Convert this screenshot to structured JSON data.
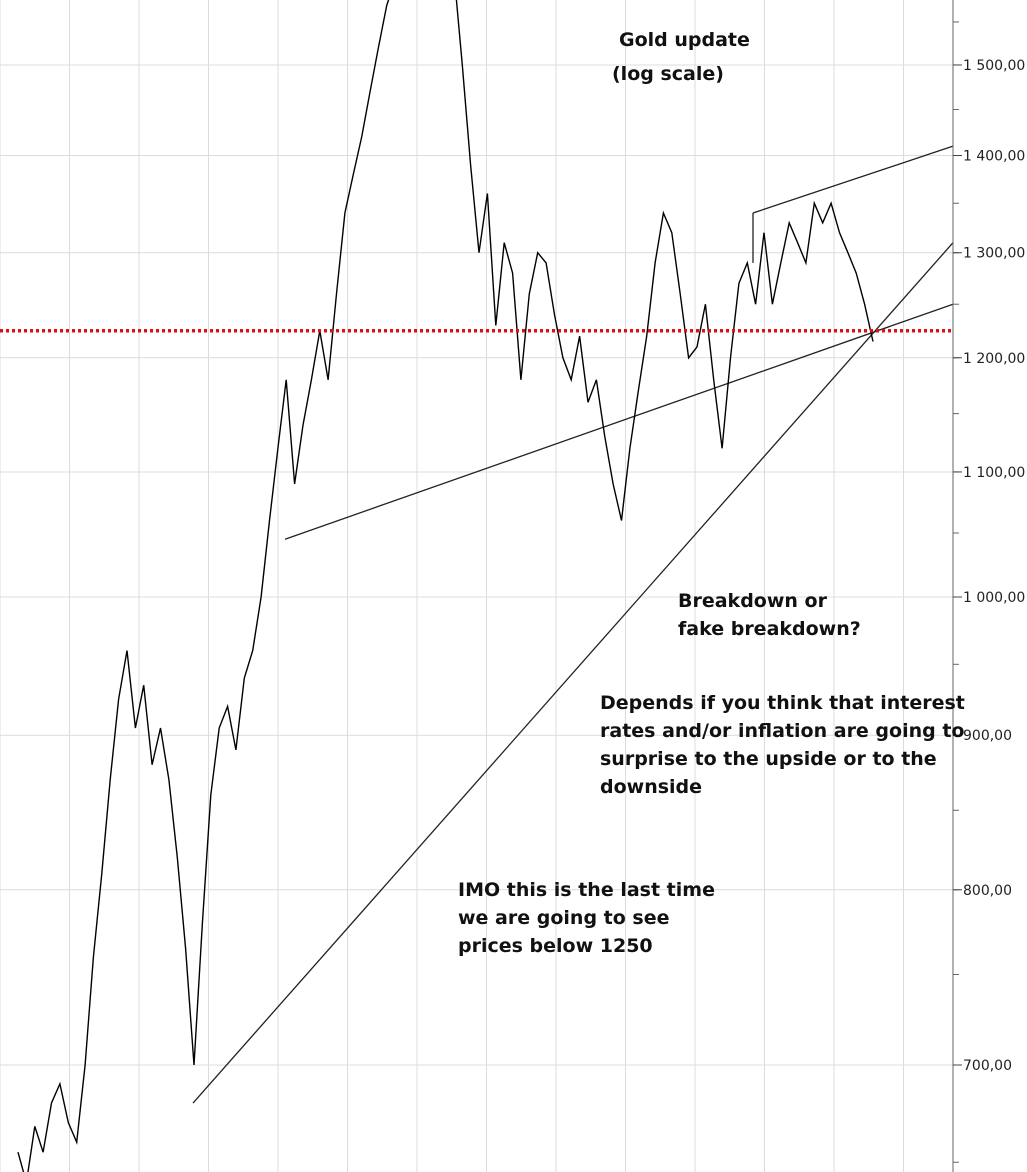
{
  "chart_data": {
    "type": "line",
    "title": "Gold update",
    "subtitle": "(log scale)",
    "xlabel": "",
    "ylabel": "",
    "y_scale": "log",
    "ylim": [
      650,
      1620
    ],
    "grid": true,
    "y_ticks": [
      {
        "value": 700,
        "label": "700,00"
      },
      {
        "value": 800,
        "label": "800,00"
      },
      {
        "value": 900,
        "label": "900,00"
      },
      {
        "value": 1000,
        "label": "1 000,00"
      },
      {
        "value": 1100,
        "label": "1 100,00"
      },
      {
        "value": 1200,
        "label": "1 200,00"
      },
      {
        "value": 1300,
        "label": "1 300,00"
      },
      {
        "value": 1400,
        "label": "1 400,00"
      },
      {
        "value": 1500,
        "label": "1 500,00"
      }
    ],
    "series": [
      {
        "values": [
          655,
          640,
          668,
          655,
          680,
          690,
          670,
          660,
          700,
          760,
          810,
          870,
          925,
          960,
          905,
          935,
          880,
          905,
          870,
          820,
          765,
          700,
          780,
          860,
          905,
          920,
          890,
          940,
          960,
          1000,
          1060,
          1120,
          1180,
          1090,
          1140,
          1180,
          1225,
          1180,
          1260,
          1340,
          1380,
          1420,
          1470,
          1520,
          1570,
          1600,
          1610,
          1590,
          1620,
          1610,
          1590,
          1630,
          1610,
          1500,
          1390,
          1300,
          1360,
          1230,
          1310,
          1280,
          1180,
          1260,
          1300,
          1290,
          1240,
          1200,
          1180,
          1220,
          1160,
          1180,
          1130,
          1090,
          1060,
          1120,
          1170,
          1220,
          1290,
          1340,
          1320,
          1260,
          1200,
          1210,
          1250,
          1180,
          1120,
          1200,
          1270,
          1290,
          1250,
          1320,
          1250,
          1290,
          1330,
          1310,
          1290,
          1350,
          1330,
          1350,
          1320,
          1300,
          1280,
          1250,
          1215
        ]
      }
    ],
    "trendlines": [
      {
        "from": 680,
        "to": 1310
      },
      {
        "from": 1045,
        "to": 1250
      },
      {
        "from": 1340,
        "to": 1410
      }
    ],
    "horizontal_line": {
      "value": 1225,
      "color": "#dd1111",
      "style": "dotted"
    },
    "annotations": [
      "Gold update",
      "(log scale)",
      "Breakdown or\nfake breakdown?",
      "Depends if you think that interest\nrates and/or inflation are going to\nsurprise to the upside or to the\ndownside",
      "IMO this is the last time\nwe are going to see\nprices below 1250"
    ],
    "colors": {
      "price_line": "#000000",
      "grid": "#dcdcdc",
      "dotted_line": "#dd1111"
    }
  }
}
